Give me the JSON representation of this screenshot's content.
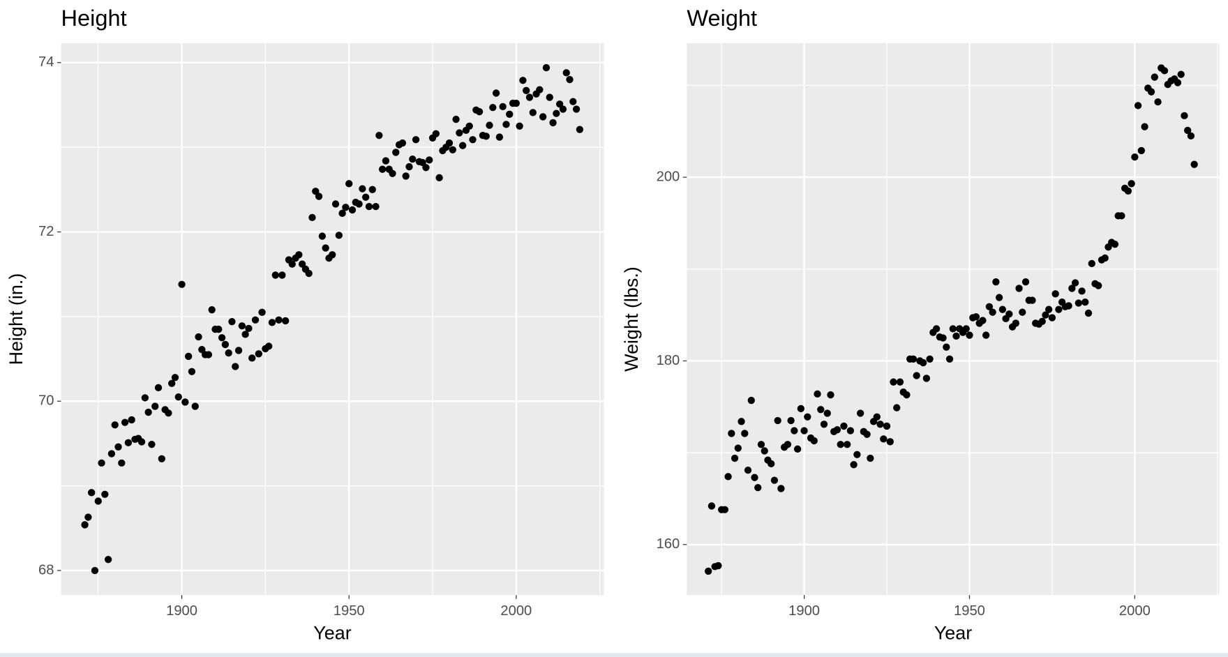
{
  "chart_data": [
    {
      "type": "scatter",
      "title": "Height",
      "x_label": "Year",
      "y_label": "Height (in.)",
      "color": "#000000",
      "background": "#ebebeb",
      "grid": true,
      "xlim": [
        1863.9,
        2026.2
      ],
      "ylim": [
        67.71,
        74.23
      ],
      "xticks": [
        1900,
        1950,
        2000
      ],
      "yticks": [
        68,
        70,
        72,
        74
      ],
      "x_minor_gridlines": [
        1875,
        1925,
        1975,
        2025
      ],
      "y_minor_gridlines": [
        69,
        71,
        73
      ],
      "x": [
        1871,
        1872,
        1873,
        1874,
        1875,
        1876,
        1877,
        1878,
        1879,
        1880,
        1881,
        1882,
        1883,
        1884,
        1885,
        1886,
        1887,
        1888,
        1889,
        1890,
        1891,
        1892,
        1893,
        1894,
        1895,
        1896,
        1897,
        1898,
        1899,
        1900,
        1901,
        1902,
        1903,
        1904,
        1905,
        1906,
        1907,
        1908,
        1909,
        1910,
        1911,
        1912,
        1913,
        1914,
        1915,
        1916,
        1917,
        1918,
        1919,
        1920,
        1921,
        1922,
        1923,
        1924,
        1925,
        1926,
        1927,
        1928,
        1929,
        1930,
        1931,
        1932,
        1933,
        1934,
        1935,
        1936,
        1937,
        1938,
        1939,
        1940,
        1941,
        1942,
        1943,
        1944,
        1945,
        1946,
        1947,
        1948,
        1949,
        1950,
        1951,
        1952,
        1953,
        1954,
        1955,
        1956,
        1957,
        1958,
        1959,
        1960,
        1961,
        1962,
        1963,
        1964,
        1965,
        1966,
        1967,
        1968,
        1969,
        1970,
        1971,
        1972,
        1973,
        1974,
        1975,
        1976,
        1977,
        1978,
        1979,
        1980,
        1981,
        1982,
        1983,
        1984,
        1985,
        1986,
        1987,
        1988,
        1989,
        1990,
        1991,
        1992,
        1993,
        1994,
        1995,
        1996,
        1997,
        1998,
        1999,
        2000,
        2001,
        2002,
        2003,
        2004,
        2005,
        2006,
        2007,
        2008,
        2009,
        2010,
        2011,
        2012,
        2013,
        2014,
        2015,
        2016,
        2017,
        2018,
        2019
      ],
      "values": [
        68.54,
        68.63,
        68.92,
        68.0,
        68.82,
        69.27,
        68.9,
        68.13,
        69.38,
        69.72,
        69.46,
        69.27,
        69.75,
        69.51,
        69.78,
        69.55,
        69.56,
        69.52,
        70.04,
        69.87,
        69.49,
        69.94,
        70.16,
        69.32,
        69.9,
        69.86,
        70.21,
        70.28,
        70.05,
        71.38,
        69.99,
        70.53,
        70.35,
        69.94,
        70.76,
        70.61,
        70.55,
        70.55,
        71.08,
        70.85,
        70.85,
        70.75,
        70.67,
        70.57,
        70.94,
        70.41,
        70.6,
        70.89,
        70.79,
        70.86,
        70.51,
        70.96,
        70.56,
        71.05,
        70.62,
        70.65,
        70.93,
        71.49,
        70.96,
        71.49,
        70.95,
        71.67,
        71.62,
        71.69,
        71.73,
        71.62,
        71.56,
        71.51,
        72.17,
        72.48,
        72.42,
        71.95,
        71.81,
        71.69,
        71.73,
        72.33,
        71.96,
        72.22,
        72.29,
        72.57,
        72.26,
        72.35,
        72.33,
        72.51,
        72.41,
        72.3,
        72.5,
        72.3,
        73.14,
        72.74,
        72.84,
        72.74,
        72.69,
        72.94,
        73.03,
        73.05,
        72.66,
        72.77,
        72.86,
        73.09,
        72.83,
        72.82,
        72.76,
        72.85,
        73.11,
        73.16,
        72.64,
        72.96,
        73.0,
        73.05,
        72.97,
        73.33,
        73.17,
        73.02,
        73.2,
        73.25,
        73.09,
        73.44,
        73.42,
        73.14,
        73.13,
        73.26,
        73.47,
        73.64,
        73.12,
        73.48,
        73.27,
        73.39,
        73.52,
        73.52,
        73.25,
        73.79,
        73.67,
        73.59,
        73.41,
        73.63,
        73.68,
        73.36,
        73.94,
        73.59,
        73.29,
        73.4,
        73.51,
        73.45,
        73.88,
        73.8,
        73.54,
        73.45,
        73.21
      ]
    },
    {
      "type": "scatter",
      "title": "Weight",
      "x_label": "Year",
      "y_label": "Weight (lbs.)",
      "color": "#000000",
      "background": "#ebebeb",
      "grid": true,
      "xlim": [
        1864.5,
        2025.6
      ],
      "ylim": [
        154.5,
        214.6
      ],
      "xticks": [
        1900,
        1950,
        2000
      ],
      "yticks": [
        160,
        180,
        200
      ],
      "x_minor_gridlines": [
        1875,
        1925,
        1975,
        2025
      ],
      "y_minor_gridlines": [
        170,
        190,
        210
      ],
      "x": [
        1871,
        1872,
        1873,
        1874,
        1875,
        1876,
        1877,
        1878,
        1879,
        1880,
        1881,
        1882,
        1883,
        1884,
        1885,
        1886,
        1887,
        1888,
        1889,
        1890,
        1891,
        1892,
        1893,
        1894,
        1895,
        1896,
        1897,
        1898,
        1899,
        1900,
        1901,
        1902,
        1903,
        1904,
        1905,
        1906,
        1907,
        1908,
        1909,
        1910,
        1911,
        1912,
        1913,
        1914,
        1915,
        1916,
        1917,
        1918,
        1919,
        1920,
        1921,
        1922,
        1923,
        1924,
        1925,
        1926,
        1927,
        1928,
        1929,
        1930,
        1931,
        1932,
        1933,
        1934,
        1935,
        1936,
        1937,
        1938,
        1939,
        1940,
        1941,
        1942,
        1943,
        1944,
        1945,
        1946,
        1947,
        1948,
        1949,
        1950,
        1951,
        1952,
        1953,
        1954,
        1955,
        1956,
        1957,
        1958,
        1959,
        1960,
        1961,
        1962,
        1963,
        1964,
        1965,
        1966,
        1967,
        1968,
        1969,
        1970,
        1971,
        1972,
        1973,
        1974,
        1975,
        1976,
        1977,
        1978,
        1979,
        1980,
        1981,
        1982,
        1983,
        1984,
        1985,
        1986,
        1987,
        1988,
        1989,
        1990,
        1991,
        1992,
        1993,
        1994,
        1995,
        1996,
        1997,
        1998,
        1999,
        2000,
        2001,
        2002,
        2003,
        2004,
        2005,
        2006,
        2007,
        2008,
        2009,
        2010,
        2011,
        2012,
        2013,
        2014,
        2015,
        2016,
        2017,
        2018
      ],
      "values": [
        157.1,
        164.2,
        157.6,
        157.7,
        163.8,
        163.8,
        167.4,
        172.1,
        169.4,
        170.5,
        173.4,
        172.1,
        168.1,
        175.7,
        167.3,
        166.2,
        170.9,
        170.2,
        169.2,
        168.8,
        167.0,
        173.5,
        166.1,
        170.6,
        170.9,
        173.5,
        172.4,
        170.4,
        174.8,
        172.4,
        173.9,
        171.6,
        171.3,
        176.4,
        174.7,
        173.1,
        174.3,
        176.3,
        172.3,
        172.5,
        170.9,
        172.9,
        170.9,
        172.4,
        168.7,
        169.8,
        174.3,
        172.3,
        172.0,
        169.4,
        173.4,
        173.9,
        173.1,
        171.5,
        172.9,
        171.2,
        177.7,
        174.9,
        177.7,
        176.6,
        176.3,
        180.2,
        180.2,
        178.4,
        180.0,
        179.8,
        178.1,
        180.2,
        183.1,
        183.5,
        182.6,
        182.5,
        181.5,
        180.2,
        183.5,
        182.7,
        183.5,
        183.1,
        183.5,
        182.8,
        184.7,
        184.8,
        184.1,
        184.4,
        182.8,
        185.9,
        185.3,
        188.6,
        186.9,
        185.6,
        184.6,
        185.1,
        183.7,
        184.1,
        187.9,
        185.3,
        188.6,
        186.6,
        186.6,
        184.1,
        184.0,
        184.3,
        185.0,
        185.6,
        184.7,
        187.3,
        185.6,
        186.4,
        185.9,
        186.0,
        187.9,
        188.5,
        186.3,
        187.6,
        186.4,
        185.2,
        190.6,
        188.4,
        188.2,
        191.0,
        191.2,
        192.4,
        192.9,
        192.7,
        195.8,
        195.8,
        198.8,
        198.5,
        199.3,
        202.2,
        207.8,
        202.9,
        205.5,
        209.7,
        209.3,
        210.9,
        208.2,
        211.9,
        211.6,
        210.1,
        210.5,
        210.7,
        210.3,
        211.2,
        206.7,
        205.1,
        204.5,
        201.4
      ]
    }
  ]
}
